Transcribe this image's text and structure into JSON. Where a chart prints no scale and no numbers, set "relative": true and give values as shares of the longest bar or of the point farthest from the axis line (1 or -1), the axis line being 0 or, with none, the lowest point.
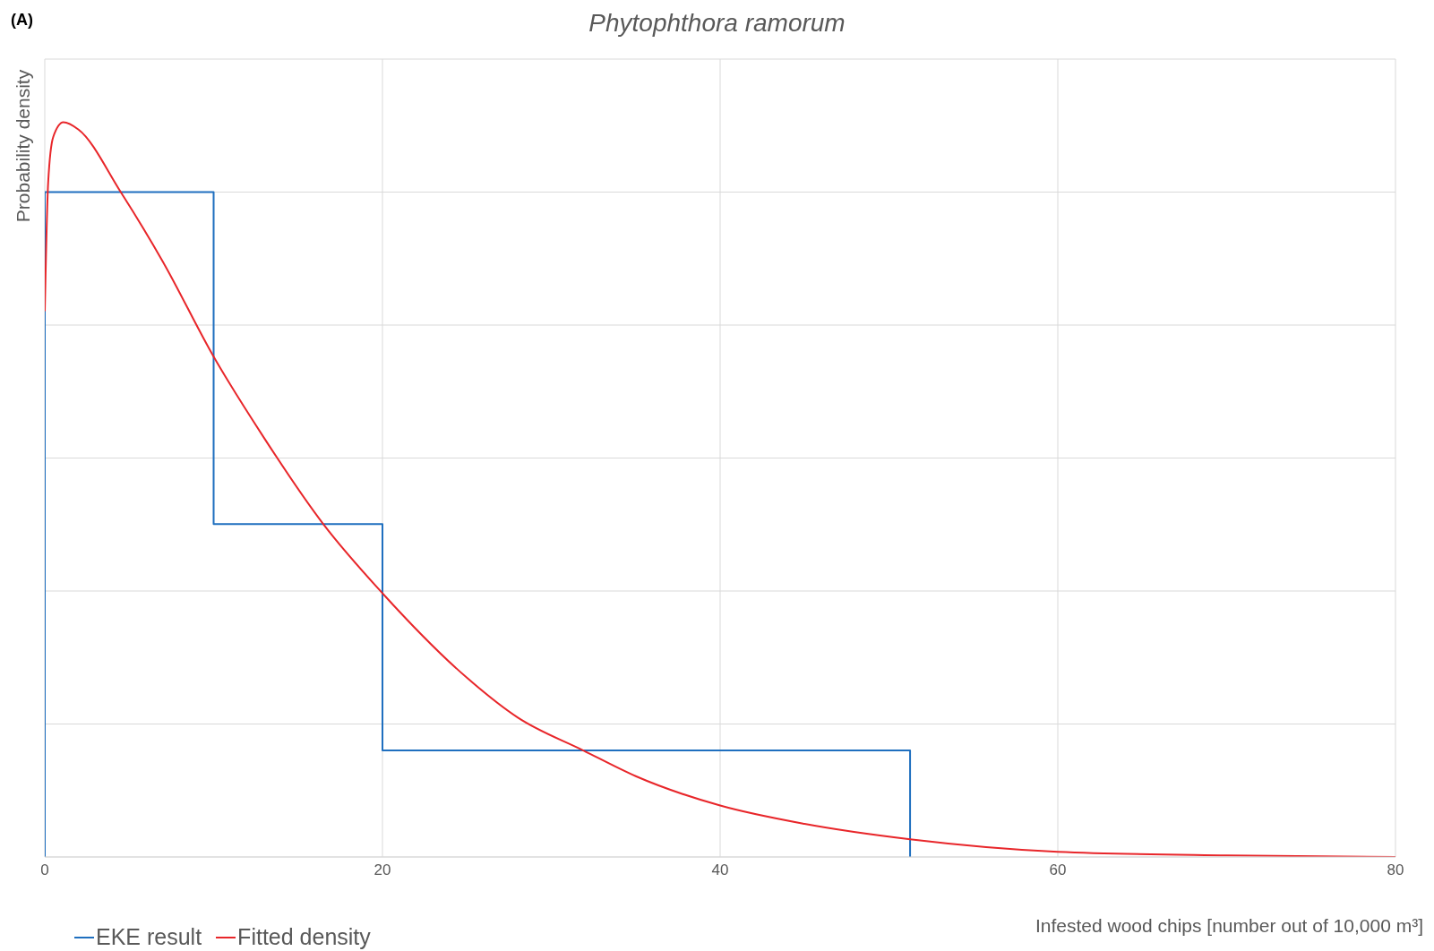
{
  "chart_data": {
    "type": "line",
    "title": "Phytophthora ramorum",
    "xlabel": "Infested wood chips [number out of 10,000 m³]",
    "ylabel": "Probability density",
    "annotations": [
      "(A)"
    ],
    "relative": true,
    "xlim": [
      0,
      80
    ],
    "xticks": [
      0,
      20,
      40,
      60,
      80
    ],
    "grid": true,
    "legend": "bottom left",
    "marker": "none",
    "series": [
      {
        "name": "EKE result",
        "type": "step",
        "color": "#1f6fbf",
        "x": [
          0,
          0,
          10,
          20,
          51.25,
          51.25
        ],
        "values": [
          0,
          0.905,
          0.453,
          0.145,
          0.145,
          0
        ]
      },
      {
        "name": "Fitted density",
        "type": "line",
        "color": "#e8262a",
        "x": [
          0,
          0.2,
          0.5,
          1.1,
          2,
          4.5,
          7,
          10,
          13,
          16.5,
          20,
          25,
          28,
          31.9,
          35,
          40,
          45,
          51.25,
          60,
          70,
          80
        ],
        "values": [
          0.743,
          0.918,
          0.98,
          1,
          0.99,
          0.905,
          0.81,
          0.681,
          0.57,
          0.453,
          0.359,
          0.244,
          0.19,
          0.145,
          0.11,
          0.07,
          0.045,
          0.024,
          0.007,
          0.002,
          0
        ]
      }
    ]
  }
}
